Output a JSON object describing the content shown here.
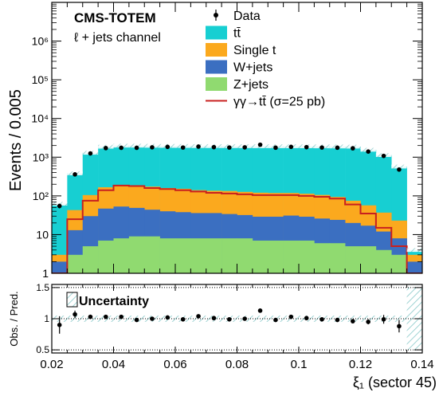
{
  "top_right_label": "",
  "chart_data": [
    {
      "type": "bar",
      "subtype": "stacked-histogram",
      "title": "",
      "ylabel": "Events / 0.005",
      "xlabel": "",
      "xlim": [
        0.02,
        0.14
      ],
      "ylim": [
        1,
        10000000
      ],
      "yscale": "log",
      "yticks": [
        "1",
        "10",
        "10²",
        "10³",
        "10⁴",
        "10⁵",
        "10⁶"
      ],
      "annotations": {
        "experiment": "CMS-TOTEM",
        "channel": "ℓ + jets channel"
      },
      "legend_position": "top-right",
      "bin_edges": [
        0.02,
        0.025,
        0.03,
        0.035,
        0.04,
        0.045,
        0.05,
        0.055,
        0.06,
        0.065,
        0.07,
        0.075,
        0.08,
        0.085,
        0.09,
        0.095,
        0.1,
        0.105,
        0.11,
        0.115,
        0.12,
        0.125,
        0.13,
        0.135,
        0.14
      ],
      "series": [
        {
          "name": "Z+jets",
          "color": "#90da70",
          "values": [
            1,
            3,
            5,
            7,
            8,
            9,
            9,
            8,
            8,
            8,
            8,
            8,
            8,
            7,
            7,
            7,
            7,
            6,
            6,
            5,
            5,
            4,
            3,
            1
          ]
        },
        {
          "name": "W+jets",
          "color": "#3b6fc1",
          "values": [
            1,
            10,
            25,
            40,
            45,
            40,
            35,
            32,
            30,
            28,
            28,
            26,
            24,
            22,
            22,
            24,
            22,
            20,
            18,
            15,
            12,
            8,
            5,
            1
          ]
        },
        {
          "name": "Single t",
          "color": "#fba91e",
          "values": [
            1,
            30,
            75,
            120,
            140,
            140,
            130,
            120,
            115,
            105,
            100,
            100,
            95,
            92,
            90,
            88,
            85,
            80,
            70,
            55,
            40,
            25,
            15,
            1
          ]
        },
        {
          "name": "tt̄",
          "color": "#17cfd2",
          "values": [
            60,
            340,
            1200,
            1700,
            1800,
            1800,
            1800,
            1800,
            1800,
            1800,
            1800,
            1800,
            1800,
            1800,
            1800,
            1800,
            1800,
            1800,
            1800,
            1800,
            1500,
            1100,
            550,
            1
          ]
        }
      ],
      "signal": {
        "name": "γγ→tt̄ (σ=25 pb)",
        "color": "#c8201f",
        "values": [
          1,
          25,
          75,
          140,
          185,
          180,
          160,
          150,
          140,
          130,
          120,
          115,
          110,
          105,
          105,
          105,
          100,
          95,
          85,
          60,
          35,
          15,
          5,
          1
        ]
      },
      "data": {
        "name": "Data",
        "x": [
          0.0225,
          0.0275,
          0.0325,
          0.0375,
          0.0425,
          0.0475,
          0.0525,
          0.0575,
          0.0625,
          0.0675,
          0.0725,
          0.0775,
          0.0825,
          0.0875,
          0.0925,
          0.0975,
          0.1025,
          0.1075,
          0.1125,
          0.1175,
          0.1225,
          0.1275,
          0.1325
        ],
        "y": [
          55,
          360,
          1250,
          1720,
          1750,
          1750,
          1800,
          1850,
          1780,
          1880,
          1820,
          1780,
          1800,
          2100,
          1760,
          1850,
          1820,
          1780,
          1760,
          1700,
          1400,
          1080,
          480
        ]
      },
      "uncertainty_label": "Uncertainty"
    },
    {
      "type": "scatter",
      "subtype": "ratio",
      "title": "",
      "ylabel": "Obs. / Pred.",
      "xlabel": "ξ₁ (sector 45)",
      "xlim": [
        0.02,
        0.14
      ],
      "ylim": [
        0.45,
        1.55
      ],
      "yticks": [
        "0.5",
        "1",
        "1.5"
      ],
      "xticks": [
        "0.02",
        "0.04",
        "0.06",
        "0.08",
        "0.1",
        "0.12",
        "0.14"
      ],
      "x": [
        0.0225,
        0.0275,
        0.0325,
        0.0375,
        0.0425,
        0.0475,
        0.0525,
        0.0575,
        0.0625,
        0.0675,
        0.0725,
        0.0775,
        0.0825,
        0.0875,
        0.0925,
        0.0975,
        0.1025,
        0.1075,
        0.1125,
        0.1175,
        0.1225,
        0.1275,
        0.1325
      ],
      "y": [
        0.9,
        1.07,
        1.03,
        1.03,
        1.03,
        0.98,
        1.0,
        1.02,
        0.99,
        1.04,
        1.01,
        0.99,
        1.0,
        1.13,
        0.98,
        1.03,
        1.01,
        0.99,
        0.98,
        0.96,
        0.95,
        0.99,
        0.88
      ],
      "yerr": [
        0.14,
        0.06,
        0.035,
        0.03,
        0.03,
        0.03,
        0.03,
        0.03,
        0.03,
        0.03,
        0.03,
        0.03,
        0.03,
        0.03,
        0.03,
        0.03,
        0.03,
        0.03,
        0.03,
        0.035,
        0.04,
        0.07,
        0.1
      ],
      "band": {
        "label": "Uncertainty",
        "half_width": [
          0.05,
          0.05,
          0.05,
          0.05,
          0.05,
          0.05,
          0.05,
          0.05,
          0.05,
          0.05,
          0.05,
          0.05,
          0.05,
          0.05,
          0.05,
          0.05,
          0.05,
          0.05,
          0.05,
          0.05,
          0.05,
          0.05,
          0.05,
          0.5
        ]
      }
    }
  ]
}
